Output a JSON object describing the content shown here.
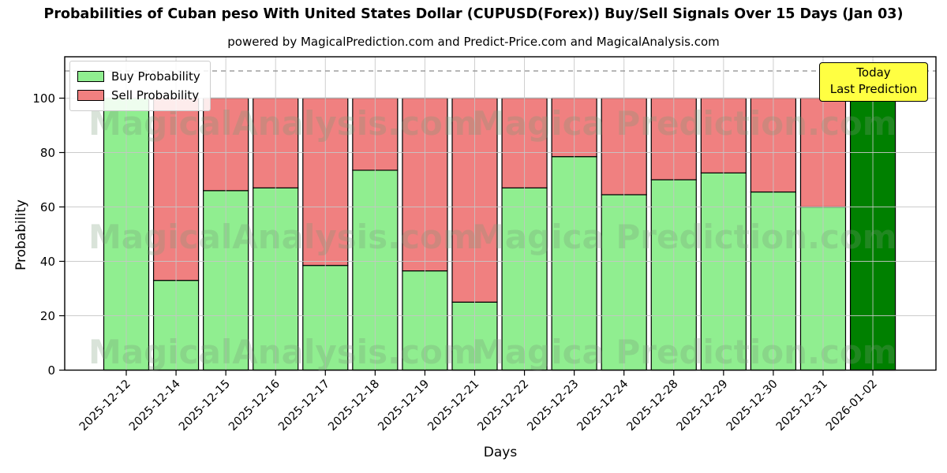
{
  "title": "Probabilities of Cuban peso With United States Dollar (CUPUSD(Forex)) Buy/Sell Signals Over 15 Days (Jan 03)",
  "subtitle": "powered by MagicalPrediction.com and Predict-Price.com and MagicalAnalysis.com",
  "legend": {
    "buy_label": "Buy Probability",
    "sell_label": "Sell Probability"
  },
  "annotation": {
    "line1": "Today",
    "line2": "Last Prediction"
  },
  "watermarks": {
    "left": "MagicalAnalysis.com",
    "right": "Magica Prediction.com"
  },
  "colors": {
    "buy": "#90EE90",
    "sell": "#F08080",
    "today": "#008000",
    "annotation_bg": "#FFFF42",
    "grid": "#c6c6c6",
    "dashed": "#8c8c8c",
    "axis": "#000000"
  },
  "chart_data": {
    "type": "bar",
    "stacked": true,
    "title": "Probabilities of Cuban peso With United States Dollar (CUPUSD(Forex)) Buy/Sell Signals Over 15 Days (Jan 03)",
    "xlabel": "Days",
    "ylabel": "Probability",
    "ylim": [
      0,
      115
    ],
    "yticks": [
      0,
      20,
      40,
      60,
      80,
      100
    ],
    "grid": true,
    "dashed_line_y": 110,
    "legend_position": "upper left",
    "categories": [
      "2025-12-12",
      "2025-12-14",
      "2025-12-15",
      "2025-12-16",
      "2025-12-17",
      "2025-12-18",
      "2025-12-19",
      "2025-12-21",
      "2025-12-22",
      "2025-12-23",
      "2025-12-24",
      "2025-12-28",
      "2025-12-29",
      "2025-12-30",
      "2025-12-31",
      "2026-01-02"
    ],
    "series": [
      {
        "name": "Buy Probability",
        "color": "#90EE90",
        "values": [
          100,
          33,
          66,
          67,
          38.5,
          73.5,
          36.5,
          25,
          67,
          78.5,
          64.5,
          70,
          72.5,
          65.5,
          60,
          100
        ]
      },
      {
        "name": "Sell Probability",
        "color": "#F08080",
        "values": [
          0,
          67,
          34,
          33,
          61.5,
          26.5,
          63.5,
          75,
          33,
          21.5,
          35.5,
          30,
          27.5,
          34.5,
          40,
          0
        ]
      }
    ],
    "today_bar": {
      "category": "2026-01-02",
      "color": "#008000",
      "value": 100
    }
  }
}
